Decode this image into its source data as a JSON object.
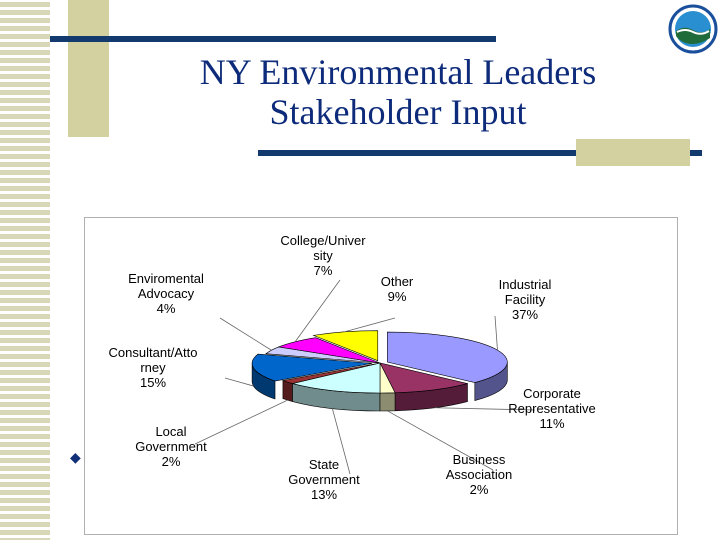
{
  "slide": {
    "title_line1": "NY Environmental Leaders",
    "title_line2": "Stakeholder Input",
    "bullet_glyph": "◆",
    "logo_icon": "agency-seal-icon",
    "bullet_icon": "diamond-bullet-icon"
  },
  "colors": {
    "title": "#0d2b7a",
    "rule": "#123a6e",
    "accent_block": "#d4d1a0",
    "stripe": "#d8d8b8"
  },
  "chart_data": {
    "type": "pie",
    "title": "",
    "series": [
      {
        "labels": [
          "Industrial Facility",
          "Corporate Representative",
          "Business Association",
          "State Government",
          "Local Government",
          "Consultant/Attorney",
          "Enviromental Advocacy",
          "College/University",
          "Other"
        ],
        "label_lines": [
          [
            "Industrial",
            "Facility",
            "37%"
          ],
          [
            "Corporate",
            "Representative",
            "11%"
          ],
          [
            "Business",
            "Association",
            "2%"
          ],
          [
            "State",
            "Government",
            "13%"
          ],
          [
            "Local",
            "Government",
            "2%"
          ],
          [
            "Consultant/Atto",
            "rney",
            "15%"
          ],
          [
            "Enviromental",
            "Advocacy",
            "4%"
          ],
          [
            "College/Univer",
            "sity",
            "7%"
          ],
          [
            "Other",
            "9%"
          ]
        ],
        "values": [
          37,
          11,
          2,
          13,
          2,
          15,
          4,
          7,
          9
        ],
        "colors": [
          "#9999ff",
          "#993366",
          "#ffffcc",
          "#ccffff",
          "#993333",
          "#0066cc",
          "#ccccff",
          "#ff00ff",
          "#ffff00"
        ]
      }
    ],
    "style": "3d-exploded",
    "legend": "none"
  }
}
